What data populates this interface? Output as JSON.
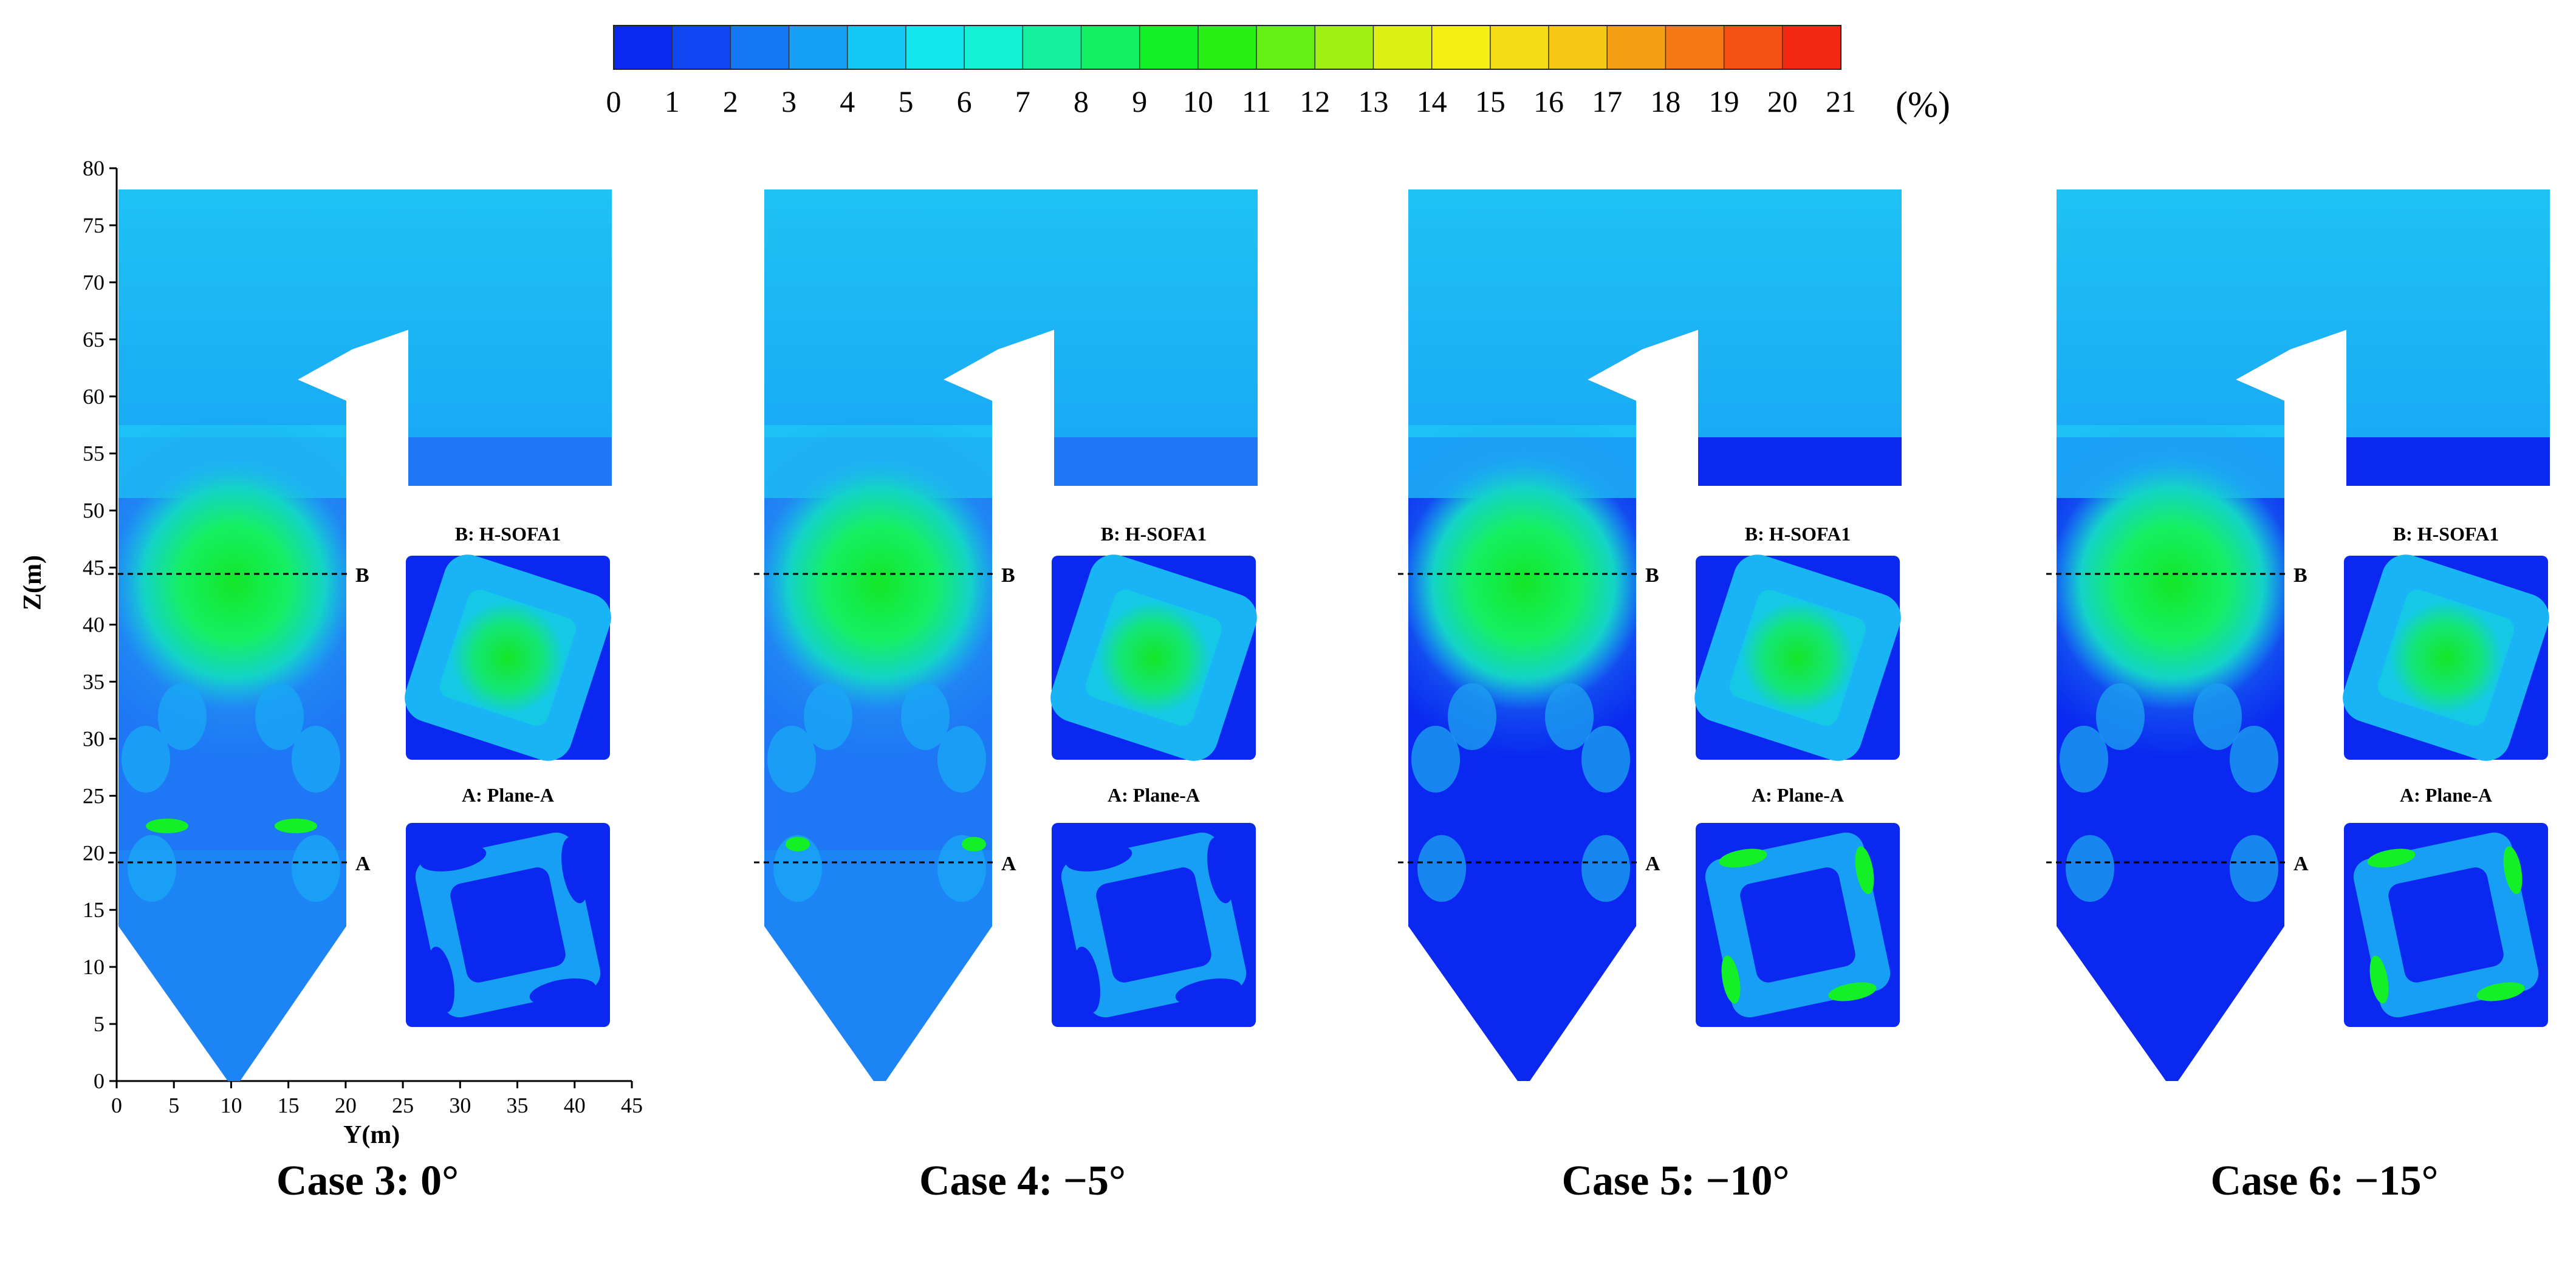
{
  "colorbar": {
    "ticks": [
      "0",
      "1",
      "2",
      "3",
      "4",
      "5",
      "6",
      "7",
      "8",
      "9",
      "10",
      "11",
      "12",
      "13",
      "14",
      "15",
      "16",
      "17",
      "18",
      "19",
      "20",
      "21"
    ],
    "unit": "(%)",
    "colors": [
      "#0a28f0",
      "#0f46f2",
      "#1478f5",
      "#16a0f5",
      "#14c8f5",
      "#14e6f0",
      "#14f0d2",
      "#14f0a0",
      "#14f064",
      "#14f028",
      "#28f014",
      "#64f014",
      "#a0f014",
      "#dcf014",
      "#f5f014",
      "#f5dc14",
      "#f5c814",
      "#f5a014",
      "#f57814",
      "#f55014",
      "#f52814",
      "#f50a14"
    ]
  },
  "axes": {
    "z_label": "Z(m)",
    "y_label": "Y(m)",
    "z_ticks": [
      "0",
      "5",
      "10",
      "15",
      "20",
      "25",
      "30",
      "35",
      "40",
      "45",
      "50",
      "55",
      "60",
      "65",
      "70",
      "75",
      "80"
    ],
    "y_ticks": [
      "0",
      "5",
      "10",
      "15",
      "20",
      "25",
      "30",
      "35",
      "40",
      "45"
    ]
  },
  "planes": {
    "b_label": "B",
    "a_label": "A",
    "b_title": "B: H-SOFA1",
    "a_title": "A: Plane-A"
  },
  "cases": [
    {
      "title": "Case 3: 0°"
    },
    {
      "title": "Case 4: −5°"
    },
    {
      "title": "Case 5: −10°"
    },
    {
      "title": "Case 6: −15°"
    }
  ]
}
